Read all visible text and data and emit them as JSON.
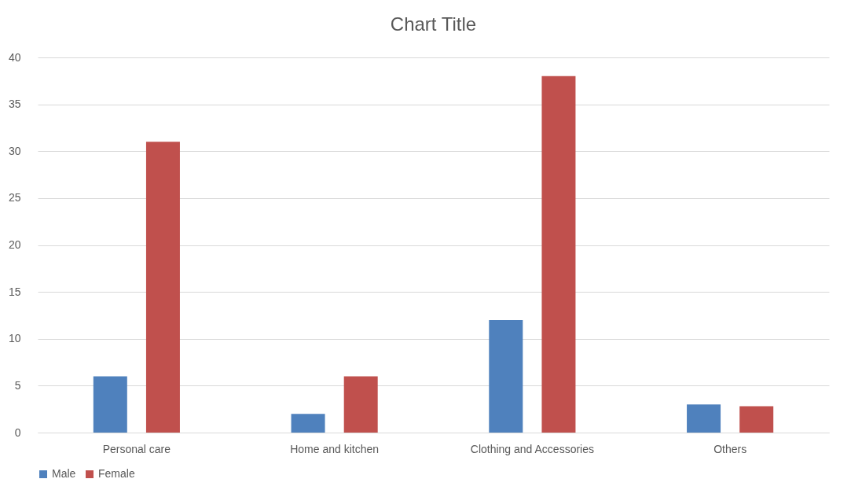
{
  "chart_data": {
    "type": "bar",
    "title": "Chart Title",
    "categories": [
      "Personal care",
      "Home and kitchen",
      "Clothing and Accessories",
      "Others"
    ],
    "series": [
      {
        "name": "Male",
        "color": "#4f81bd",
        "values": [
          6,
          2,
          12,
          3
        ]
      },
      {
        "name": "Female",
        "color": "#c0504d",
        "values": [
          31,
          6,
          38,
          2.8
        ]
      }
    ],
    "ylim": [
      0,
      40
    ],
    "yticks": [
      0,
      5,
      10,
      15,
      20,
      25,
      30,
      35,
      40
    ],
    "grid": "y",
    "legend": "bottom"
  }
}
